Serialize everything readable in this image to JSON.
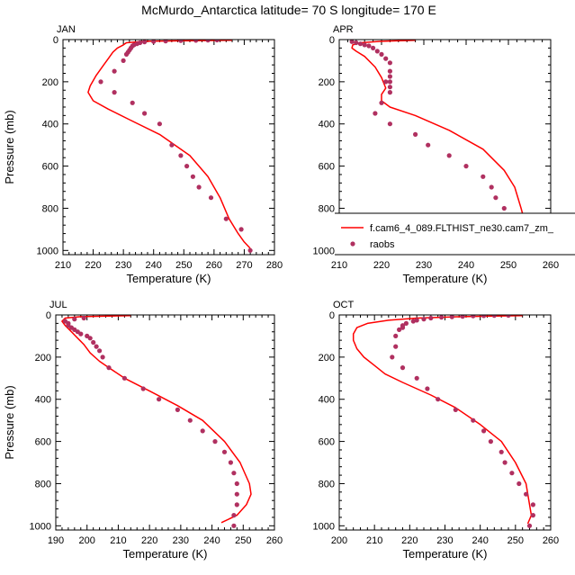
{
  "title": "McMurdo_Antarctica  latitude= 70 S longitude= 170 E",
  "colors": {
    "model": "#ff0000",
    "obs": "#b03060"
  },
  "legend": {
    "model_label": "f.cam6_4_089.FLTHIST_ne30.cam7_zm_",
    "obs_label": "raobs"
  },
  "chart_data": [
    {
      "type": "line",
      "panel": "JAN",
      "xlabel": "Temperature (K)",
      "ylabel": "Pressure (mb)",
      "xlim": [
        210,
        280
      ],
      "ylim": [
        0,
        1020
      ],
      "xticks": [
        210,
        220,
        230,
        240,
        250,
        260,
        270,
        280
      ],
      "yticks": [
        0,
        200,
        400,
        600,
        800,
        1000
      ],
      "model": {
        "T": [
          266,
          237,
          231,
          230,
          228,
          226.5,
          225,
          223.5,
          221,
          219,
          218.3,
          220,
          225,
          232,
          242,
          252,
          258,
          262,
          265,
          268,
          270,
          272
        ],
        "p": [
          3,
          8,
          15,
          25,
          40,
          60,
          90,
          120,
          170,
          220,
          250,
          290,
          330,
          380,
          450,
          550,
          650,
          750,
          850,
          920,
          960,
          990
        ]
      },
      "obs": {
        "T": [
          261,
          258,
          254,
          249,
          244,
          240,
          237,
          235.5,
          234.5,
          233.5,
          233,
          232.5,
          232,
          231.5,
          231,
          230,
          227,
          222.5,
          227,
          233,
          237,
          242,
          246,
          249,
          251,
          253,
          255,
          259,
          264,
          269,
          272
        ],
        "p": [
          2,
          3,
          4,
          5,
          7,
          9,
          11,
          15,
          20,
          25,
          30,
          40,
          50,
          60,
          70,
          100,
          150,
          200,
          250,
          300,
          350,
          400,
          500,
          550,
          600,
          650,
          700,
          750,
          850,
          900,
          1000
        ]
      }
    },
    {
      "type": "line",
      "panel": "APR",
      "xlabel": "Temperature (K)",
      "ylabel": "",
      "xlim": [
        210,
        260
      ],
      "ylim": [
        0,
        1020
      ],
      "xticks": [
        210,
        220,
        230,
        240,
        250,
        260
      ],
      "yticks": [
        0,
        200,
        400,
        600,
        800,
        1000
      ],
      "model": {
        "T": [
          228,
          220,
          215,
          213.2,
          213,
          214,
          216,
          218.5,
          220,
          221,
          220,
          220,
          222,
          228,
          236,
          244,
          249,
          251.5,
          253,
          253.8,
          254,
          253.8,
          253.5,
          252.8
        ],
        "p": [
          3,
          8,
          15,
          25,
          40,
          55,
          80,
          130,
          180,
          230,
          260,
          290,
          320,
          360,
          430,
          520,
          620,
          700,
          800,
          860,
          900,
          940,
          970,
          990
        ]
      },
      "obs": {
        "T": [
          213,
          214,
          215,
          216,
          217,
          218,
          219,
          220,
          221,
          222,
          222,
          222,
          221,
          222,
          222,
          222,
          220,
          218.5,
          222,
          228,
          231,
          236,
          240,
          244,
          246,
          247,
          249,
          252,
          253,
          255,
          256,
          257
        ],
        "p": [
          10,
          15,
          20,
          25,
          30,
          40,
          55,
          70,
          90,
          110,
          150,
          175,
          200,
          200,
          225,
          250,
          300,
          350,
          400,
          450,
          500,
          550,
          600,
          650,
          700,
          750,
          800,
          850,
          900,
          950,
          1000,
          1000
        ]
      }
    },
    {
      "type": "line",
      "panel": "JUL",
      "xlabel": "Temperature (K)",
      "ylabel": "Pressure (mb)",
      "xlim": [
        190,
        260
      ],
      "ylim": [
        0,
        1020
      ],
      "xticks": [
        190,
        200,
        210,
        220,
        230,
        240,
        250,
        260
      ],
      "yticks": [
        0,
        200,
        400,
        600,
        800,
        1000
      ],
      "model": {
        "T": [
          214,
          198,
          193,
          192,
          193,
          195,
          197,
          199,
          201,
          204,
          207,
          212,
          220,
          229,
          237,
          244,
          249,
          252,
          252.5,
          251,
          248,
          243
        ],
        "p": [
          3,
          8,
          15,
          30,
          50,
          80,
          110,
          140,
          180,
          220,
          250,
          300,
          360,
          430,
          500,
          600,
          700,
          800,
          850,
          900,
          950,
          985
        ]
      },
      "obs": {
        "T": [
          199,
          196,
          193,
          194,
          194,
          195,
          196,
          197,
          198,
          200,
          201,
          202,
          203,
          204,
          205,
          207,
          212,
          218,
          223,
          229,
          233,
          237,
          241,
          244,
          246,
          247,
          248,
          248,
          248,
          247,
          247
        ],
        "p": [
          15,
          20,
          30,
          40,
          50,
          60,
          70,
          80,
          90,
          100,
          110,
          130,
          150,
          170,
          200,
          250,
          300,
          350,
          400,
          450,
          500,
          550,
          600,
          650,
          700,
          750,
          800,
          850,
          900,
          950,
          1000
        ]
      }
    },
    {
      "type": "line",
      "panel": "OCT",
      "xlabel": "Temperature (K)",
      "ylabel": "",
      "xlim": [
        200,
        260
      ],
      "ylim": [
        0,
        1020
      ],
      "xticks": [
        200,
        210,
        220,
        230,
        240,
        250,
        260
      ],
      "yticks": [
        0,
        200,
        400,
        600,
        800,
        1000
      ],
      "model": {
        "T": [
          252,
          235,
          222,
          214,
          208,
          205,
          204,
          204,
          205,
          207,
          210,
          213,
          218,
          226,
          233,
          240,
          246,
          250,
          253,
          254,
          254.5,
          253.5
        ],
        "p": [
          3,
          8,
          15,
          25,
          40,
          60,
          90,
          120,
          160,
          200,
          240,
          280,
          320,
          380,
          440,
          520,
          600,
          700,
          800,
          900,
          950,
          990
        ]
      },
      "obs": {
        "T": [
          248,
          244,
          241,
          238,
          235,
          232,
          229,
          226,
          224,
          222,
          221,
          219,
          218,
          218,
          217,
          216,
          216,
          215,
          218,
          222,
          225,
          228,
          233,
          238,
          241,
          243,
          246,
          247,
          249,
          251,
          253,
          255,
          255,
          254
        ],
        "p": [
          2,
          3,
          4,
          5,
          7,
          9,
          11,
          15,
          20,
          25,
          30,
          40,
          50,
          60,
          70,
          100,
          150,
          200,
          250,
          300,
          350,
          400,
          450,
          500,
          550,
          600,
          650,
          700,
          750,
          800,
          850,
          900,
          950,
          1000
        ]
      }
    }
  ]
}
